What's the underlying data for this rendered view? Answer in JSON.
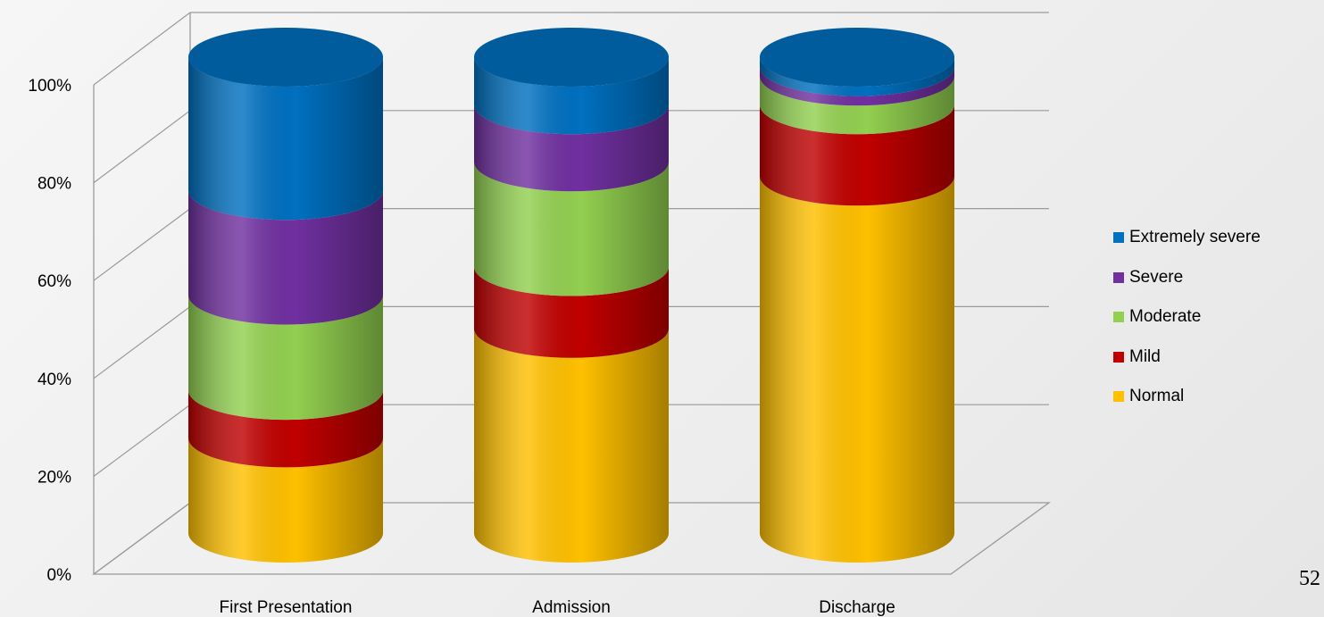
{
  "chart_data": {
    "type": "bar",
    "style": "3d-stacked-cylinder-percent",
    "categories": [
      "First Presentation",
      "Admission",
      "Discharge"
    ],
    "series": [
      {
        "name": "Normal",
        "color": "#FFC000",
        "values": [
          20,
          43,
          75
        ]
      },
      {
        "name": "Mild",
        "color": "#C00000",
        "values": [
          10,
          13,
          15
        ]
      },
      {
        "name": "Moderate",
        "color": "#92D050",
        "values": [
          20,
          22,
          6
        ]
      },
      {
        "name": "Severe",
        "color": "#7030A0",
        "values": [
          22,
          12,
          2
        ]
      },
      {
        "name": "Extremely severe",
        "color": "#0070C0",
        "values": [
          28,
          10,
          2
        ]
      }
    ],
    "yticks": [
      "0%",
      "20%",
      "40%",
      "60%",
      "80%",
      "100%"
    ],
    "ylim": [
      0,
      100
    ],
    "grid": true,
    "legend": "right"
  },
  "slide_number": "52"
}
